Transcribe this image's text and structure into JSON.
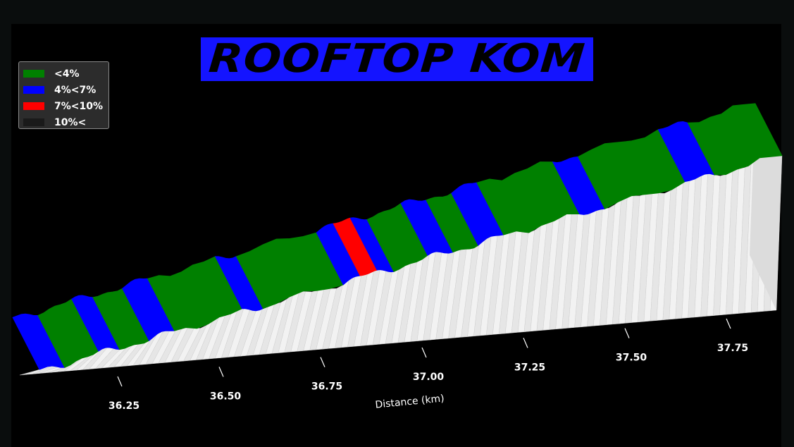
{
  "chart_data": {
    "type": "area",
    "title": "ROOFTOP KOM",
    "xlabel": "Distance (km)",
    "ylabel": "",
    "xlim": [
      36.1,
      37.86
    ],
    "x_ticks": [
      36.25,
      36.5,
      36.75,
      37.0,
      37.25,
      37.5,
      37.75
    ],
    "x_tick_labels": [
      "36.25",
      "36.50",
      "36.75",
      "37.00",
      "37.25",
      "37.50",
      "37.75"
    ],
    "legend_position": "top-left",
    "gradient_bins": [
      {
        "name": "<4%",
        "color": "#008000"
      },
      {
        "name": "4%<7%",
        "color": "#0000ff"
      },
      {
        "name": "7%<10%",
        "color": "#ff0000"
      },
      {
        "name": "10%<",
        "color": "#1a1a1a"
      }
    ],
    "segments": [
      {
        "from": 36.1,
        "to": 36.16,
        "grade_class": "4%<7%"
      },
      {
        "from": 36.16,
        "to": 36.24,
        "grade_class": "<4%"
      },
      {
        "from": 36.24,
        "to": 36.29,
        "grade_class": "4%<7%"
      },
      {
        "from": 36.29,
        "to": 36.36,
        "grade_class": "<4%"
      },
      {
        "from": 36.36,
        "to": 36.42,
        "grade_class": "4%<7%"
      },
      {
        "from": 36.42,
        "to": 36.58,
        "grade_class": "<4%"
      },
      {
        "from": 36.58,
        "to": 36.63,
        "grade_class": "4%<7%"
      },
      {
        "from": 36.63,
        "to": 36.82,
        "grade_class": "<4%"
      },
      {
        "from": 36.82,
        "to": 36.86,
        "grade_class": "4%<7%"
      },
      {
        "from": 36.86,
        "to": 36.9,
        "grade_class": "7%<10%"
      },
      {
        "from": 36.9,
        "to": 36.94,
        "grade_class": "4%<7%"
      },
      {
        "from": 36.94,
        "to": 37.02,
        "grade_class": "<4%"
      },
      {
        "from": 37.02,
        "to": 37.08,
        "grade_class": "4%<7%"
      },
      {
        "from": 37.08,
        "to": 37.14,
        "grade_class": "<4%"
      },
      {
        "from": 37.14,
        "to": 37.2,
        "grade_class": "4%<7%"
      },
      {
        "from": 37.2,
        "to": 37.38,
        "grade_class": "<4%"
      },
      {
        "from": 37.38,
        "to": 37.44,
        "grade_class": "4%<7%"
      },
      {
        "from": 37.44,
        "to": 37.63,
        "grade_class": "<4%"
      },
      {
        "from": 37.63,
        "to": 37.7,
        "grade_class": "4%<7%"
      },
      {
        "from": 37.7,
        "to": 37.86,
        "grade_class": "<4%"
      }
    ]
  }
}
